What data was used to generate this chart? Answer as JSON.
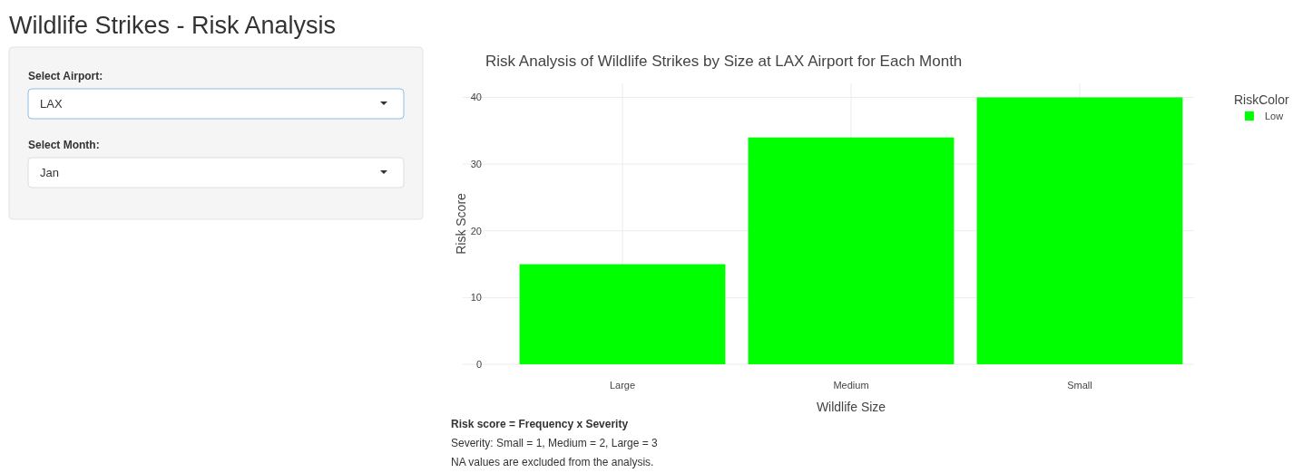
{
  "chart_data": [
    {
      "type": "other",
      "title": "Wildlife Strikes - Risk Analysis",
      "annotations": [
        "Select Airport:",
        "LAX",
        "Select Month:",
        "Jan"
      ]
    },
    {
      "type": "bar",
      "title": "Risk Analysis of Wildlife Strikes by Size at LAX Airport for Each Month",
      "xlabel": "Wildlife Size",
      "ylabel": "Risk Score",
      "legend_title": "RiskColor",
      "legend": "top right",
      "grid": true,
      "categories": [
        "Large",
        "Medium",
        "Small"
      ],
      "series": [
        {
          "name": "Low",
          "color": "#00ff00",
          "values": [
            15,
            34,
            40
          ]
        }
      ],
      "ylim": [
        0,
        42.1
      ],
      "yticks": [
        0,
        10,
        20,
        30,
        40
      ],
      "annotations": [
        "Risk score = Frequency x Severity",
        "Severity: Small = 1, Medium = 2, Large = 3",
        "NA values are excluded from the analysis."
      ]
    }
  ]
}
